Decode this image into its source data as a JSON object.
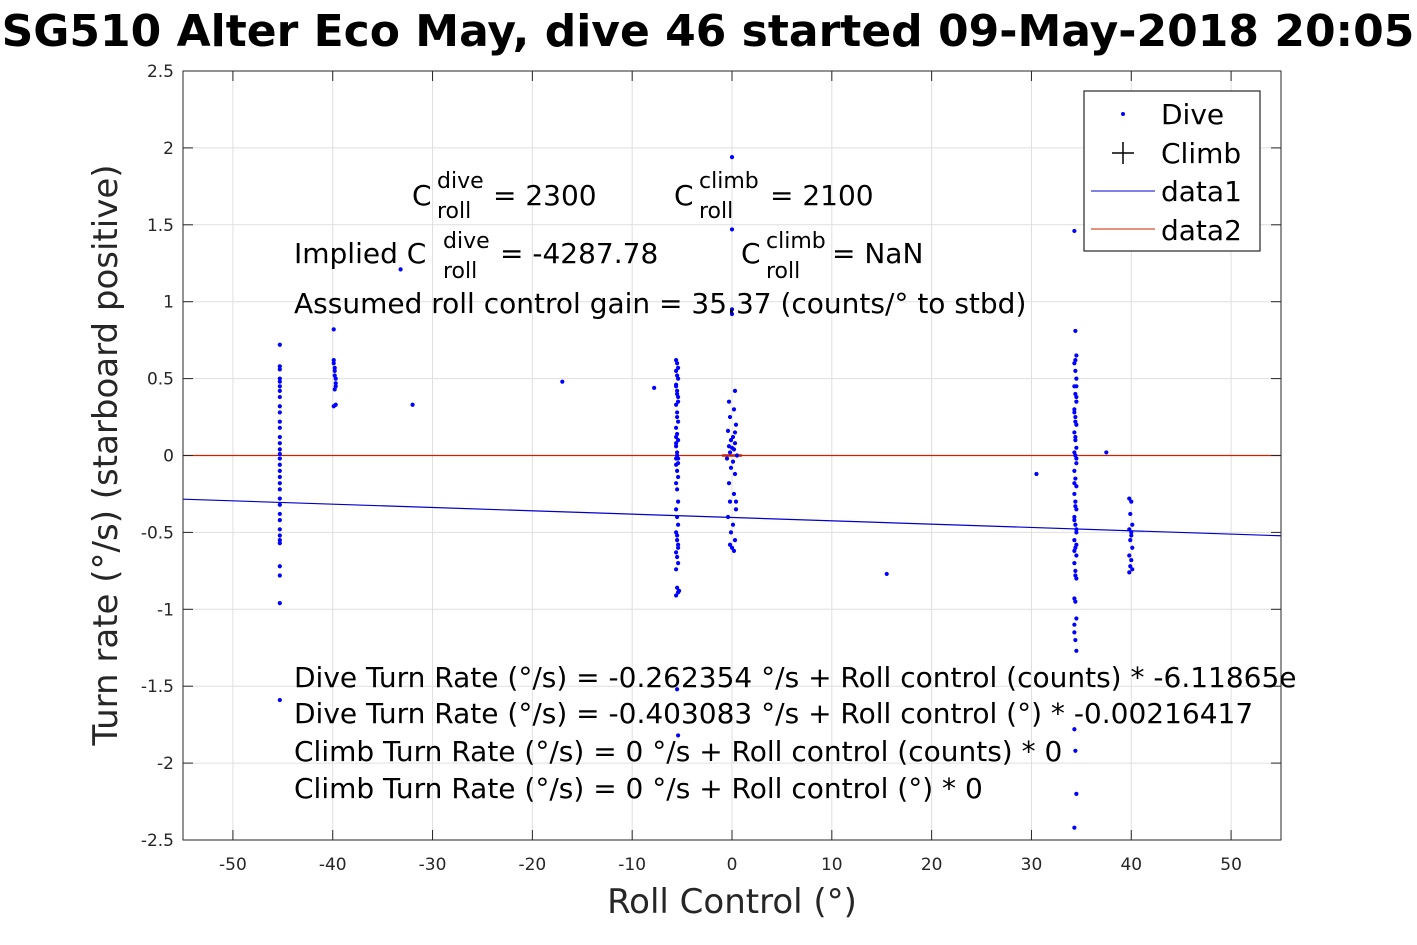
{
  "chart_data": {
    "type": "scatter",
    "title": "SG510 Alter Eco May, dive 46 started 09-May-2018 20:05",
    "xlabel": "Roll Control (°)",
    "ylabel": "Turn rate (°/s) (starboard positive)",
    "xlim": [
      -55,
      55
    ],
    "ylim": [
      -2.5,
      2.5
    ],
    "xticks": [
      -50,
      -40,
      -30,
      -20,
      -10,
      0,
      10,
      20,
      30,
      40,
      50
    ],
    "yticks": [
      -2.5,
      -2,
      -1.5,
      -1,
      -0.5,
      0,
      0.5,
      1,
      1.5,
      2,
      2.5
    ],
    "grid": true,
    "legend_location": "top-right",
    "series": [
      {
        "name": "Dive",
        "kind": "points",
        "color": "#0000ff",
        "x": [
          -45.3,
          -45.3,
          -45.3,
          -45.3,
          -45.3,
          -45.3,
          -45.3,
          -45.3,
          -45.3,
          -45.3,
          -45.3,
          -45.3,
          -45.3,
          -45.3,
          -45.3,
          -45.3,
          -45.3,
          -45.3,
          -45.3,
          -45.3,
          -45.3,
          -45.3,
          -45.3,
          -45.3,
          -45.3,
          -45.3,
          -45.3,
          -45.3,
          -45.3,
          -45.3,
          -45.3,
          -45.3,
          -45.3,
          -45.3,
          -39.9,
          -39.9,
          -39.9,
          -39.8,
          -39.8,
          -39.8,
          -39.7,
          -39.7,
          -39.7,
          -39.8,
          -39.7,
          -39.9,
          -33.2,
          -32.0,
          -17.0,
          -7.8,
          -5.6,
          -5.5,
          -5.4,
          -5.6,
          -5.5,
          -5.4,
          -5.6,
          -5.5,
          -5.4,
          -5.6,
          -5.5,
          -5.4,
          -5.6,
          -5.5,
          -5.4,
          -5.6,
          -5.5,
          -5.4,
          -5.6,
          -5.5,
          -5.4,
          -5.6,
          -5.5,
          -5.4,
          -5.6,
          -5.5,
          -5.4,
          -5.6,
          -5.5,
          -5.4,
          -5.6,
          -5.5,
          -5.4,
          -5.6,
          -5.5,
          -5.4,
          -5.6,
          -5.5,
          -5.4,
          -5.6,
          -5.5,
          -5.4,
          -5.6,
          -5.5,
          -5.4,
          -5.6,
          -5.5,
          -5.6,
          -5.5,
          -5.4,
          -5.3,
          0.0,
          0.0,
          0.0,
          0.0,
          0.3,
          -0.3,
          0.2,
          -0.2,
          0.4,
          -0.4,
          0.1,
          -0.1,
          0.3,
          -0.3,
          0.2,
          -0.2,
          0.5,
          -0.5,
          0.1,
          -0.1,
          0.3,
          -0.3,
          0.2,
          -0.2,
          0.4,
          -0.4,
          0.1,
          -0.1,
          0.3,
          0.0,
          0.2,
          -0.2,
          0.0,
          0.3,
          0.4,
          15.5,
          30.5,
          37.5,
          34.3,
          34.4,
          34.5,
          34.3,
          34.4,
          34.5,
          34.3,
          34.4,
          34.5,
          34.3,
          34.4,
          34.5,
          34.3,
          34.4,
          34.5,
          34.3,
          34.4,
          34.5,
          34.3,
          34.4,
          34.5,
          34.3,
          34.4,
          34.5,
          34.3,
          34.4,
          34.5,
          34.3,
          34.4,
          34.5,
          34.3,
          34.4,
          34.5,
          34.3,
          34.4,
          34.5,
          34.3,
          34.4,
          34.5,
          34.3,
          34.4,
          34.5,
          34.3,
          34.4,
          34.5,
          34.3,
          34.4,
          34.5,
          34.3,
          34.4,
          34.5,
          34.3,
          34.4,
          34.5,
          34.3,
          34.4,
          34.5,
          34.3,
          39.8,
          40.0,
          39.9,
          40.1,
          39.8,
          40.0,
          39.9,
          40.1,
          39.8,
          40.0,
          39.9,
          40.1,
          39.8,
          40.0
        ],
        "y": [
          0.72,
          0.58,
          0.56,
          0.48,
          0.45,
          0.42,
          0.38,
          0.32,
          0.28,
          0.22,
          0.18,
          0.12,
          0.08,
          0.04,
          0.01,
          -0.02,
          -0.06,
          -0.1,
          -0.14,
          -0.18,
          -0.22,
          -0.28,
          -0.32,
          -0.38,
          -0.42,
          -0.48,
          -0.52,
          -0.55,
          -0.57,
          -0.72,
          -0.78,
          -0.96,
          -1.59,
          0.5,
          0.82,
          0.62,
          0.6,
          0.57,
          0.55,
          0.52,
          0.5,
          0.47,
          0.45,
          0.43,
          0.33,
          0.32,
          1.21,
          0.33,
          0.48,
          0.44,
          0.62,
          0.6,
          0.57,
          0.55,
          0.52,
          0.5,
          0.46,
          0.42,
          0.38,
          0.33,
          0.28,
          0.22,
          0.18,
          0.14,
          0.1,
          0.06,
          0.02,
          -0.02,
          -0.06,
          -0.1,
          -0.14,
          -0.18,
          -0.22,
          -0.3,
          -0.35,
          -0.4,
          -0.45,
          -0.5,
          -0.55,
          -0.6,
          -0.63,
          -0.66,
          -0.7,
          -0.74,
          -0.86,
          -0.89,
          -0.91,
          -1.52,
          -1.82,
          0.08,
          0.0,
          -0.05,
          0.12,
          0.25,
          0.35,
          -0.02,
          0.4,
          0.45,
          -0.52,
          -0.58,
          -0.88,
          1.94,
          1.47,
          0.95,
          0.92,
          0.42,
          0.35,
          0.3,
          0.25,
          0.2,
          0.16,
          0.12,
          0.1,
          0.08,
          0.06,
          0.04,
          0.02,
          0.0,
          -0.02,
          -0.04,
          -0.08,
          -0.12,
          -0.18,
          -0.25,
          -0.3,
          -0.35,
          -0.4,
          -0.45,
          -0.5,
          -0.55,
          -0.6,
          -0.62,
          -0.58,
          0.05,
          0.15,
          -0.3,
          -0.77,
          -0.12,
          0.02,
          1.46,
          0.81,
          0.65,
          0.6,
          0.55,
          0.5,
          0.45,
          0.4,
          0.35,
          0.3,
          0.25,
          0.2,
          0.15,
          0.1,
          0.05,
          0.02,
          0.0,
          -0.05,
          -0.1,
          -0.15,
          -0.2,
          -0.25,
          -0.3,
          -0.35,
          -0.4,
          -0.45,
          -0.5,
          -0.55,
          -0.6,
          -0.65,
          -0.7,
          -0.75,
          -0.8,
          -0.93,
          -0.95,
          -1.06,
          -1.1,
          -1.2,
          -1.27,
          -1.78,
          -1.92,
          -2.2,
          -2.42,
          0.62,
          0.45,
          0.28,
          0.12,
          -0.02,
          -0.18,
          -0.33,
          -0.48,
          -0.62,
          -0.78,
          0.38,
          -0.42,
          0.22,
          -0.58,
          -1.15,
          -0.28,
          -0.3,
          -0.38,
          -0.45,
          -0.48,
          -0.52,
          -0.55,
          -0.6,
          -0.65,
          -0.68,
          -0.72,
          -0.74,
          -0.76,
          -0.5
        ]
      },
      {
        "name": "Climb",
        "kind": "plus",
        "color": "#000000",
        "x": [],
        "y": []
      },
      {
        "name": "data1",
        "kind": "line",
        "color": "#0000cc",
        "x": [
          -55,
          55
        ],
        "y": [
          -0.284,
          -0.522
        ]
      },
      {
        "name": "data2",
        "kind": "line",
        "color": "#cc2200",
        "x": [
          -55,
          55
        ],
        "y": [
          0,
          0
        ]
      }
    ],
    "climb_marker_segment": {
      "x": [
        -1.0,
        1.0
      ],
      "y": [
        0,
        0
      ],
      "color": "#cc2200"
    },
    "annotations": {
      "c_dive_prefix": "C",
      "c_dive_sup": "dive",
      "c_dive_sub": "roll",
      "c_dive_value": " = 2300",
      "c_climb_prefix": "C",
      "c_climb_sup": "climb",
      "c_climb_sub": "roll",
      "c_climb_value": " = 2100",
      "implied_prefix": "Implied C",
      "implied_sup": "dive",
      "implied_sub": "roll",
      "implied_value": " = -4287.78",
      "implied_climb_prefix": "C",
      "implied_climb_sup": "climb",
      "implied_climb_sub": "roll",
      "implied_climb_value": " = NaN",
      "gain_line": "Assumed roll control gain = 35.37 (counts/° to stbd)",
      "eq1": "Dive Turn Rate (°/s) = -0.262354 °/s + Roll control (counts) * -6.11865e",
      "eq2": "Dive Turn Rate (°/s) = -0.403083 °/s + Roll control (°) * -0.00216417",
      "eq3": "Climb Turn Rate (°/s) = 0 °/s + Roll control (counts) * 0",
      "eq4": "Climb Turn Rate (°/s) = 0 °/s + Roll control (°) * 0"
    },
    "colors": {
      "axes": "#262626",
      "grid": "#dfdfdf",
      "dive_points": "#0000ff",
      "fit_line": "#0000cc",
      "zero_line": "#cc2200"
    }
  }
}
